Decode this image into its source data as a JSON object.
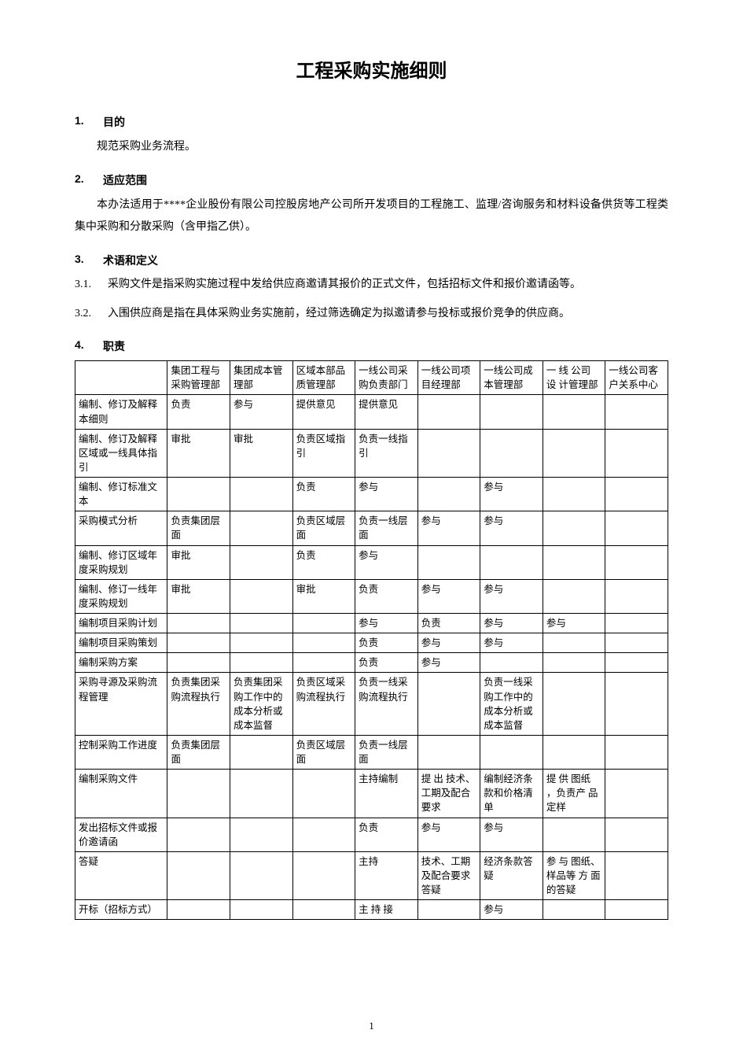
{
  "page": {
    "title": "工程采购实施细则",
    "page_number": "1"
  },
  "sections": {
    "s1": {
      "num": "1.",
      "heading": "目的",
      "body": "规范采购业务流程。"
    },
    "s2": {
      "num": "2.",
      "heading": "适应范围",
      "body": "本办法适用于****企业股份有限公司控股房地产公司所开发项目的工程施工、监理/咨询服务和材料设备供货等工程类集中采购和分散采购（含甲指乙供）。"
    },
    "s3": {
      "num": "3.",
      "heading": "术语和定义",
      "i1": {
        "num": "3.1.",
        "text": "采购文件是指采购实施过程中发给供应商邀请其报价的正式文件，包括招标文件和报价邀请函等。"
      },
      "i2": {
        "num": "3.2.",
        "text": "入围供应商是指在具体采购业务实施前，经过筛选确定为拟邀请参与投标或报价竞争的供应商。"
      }
    },
    "s4": {
      "num": "4.",
      "heading": "职责"
    }
  },
  "table": {
    "headers": {
      "c0": "",
      "c1": "集团工程与采购管理部",
      "c2": "集团成本管理部",
      "c3": "区域本部品质管理部",
      "c4": "一线公司采购负责部门",
      "c5": "一线公司项目经理部",
      "c6": "一线公司成本管理部",
      "c7": "一 线 公司 设 计管理部",
      "c8": "一线公司客户关系中心"
    },
    "rows": [
      {
        "c0": "编制、修订及解释本细则",
        "c1": "负责",
        "c2": "参与",
        "c3": "提供意见",
        "c4": "提供意见",
        "c5": "",
        "c6": "",
        "c7": "",
        "c8": ""
      },
      {
        "c0": "编制、修订及解释区域或一线具体指引",
        "c1": "审批",
        "c2": "审批",
        "c3": "负责区域指引",
        "c4": "负责一线指引",
        "c5": "",
        "c6": "",
        "c7": "",
        "c8": ""
      },
      {
        "c0": "编制、修订标准文本",
        "c1": "",
        "c2": "",
        "c3": "负责",
        "c4": "参与",
        "c5": "",
        "c6": "参与",
        "c7": "",
        "c8": ""
      },
      {
        "c0": "采购模式分析",
        "c1": "负责集团层面",
        "c2": "",
        "c3": "负责区域层面",
        "c4": "负责一线层面",
        "c5": "参与",
        "c6": "参与",
        "c7": "",
        "c8": ""
      },
      {
        "c0": "编制、修订区域年度采购规划",
        "c1": "审批",
        "c2": "",
        "c3": "负责",
        "c4": "参与",
        "c5": "",
        "c6": "",
        "c7": "",
        "c8": ""
      },
      {
        "c0": "编制、修订一线年度采购规划",
        "c1": "审批",
        "c2": "",
        "c3": "审批",
        "c4": "负责",
        "c5": "参与",
        "c6": "参与",
        "c7": "",
        "c8": ""
      },
      {
        "c0": "编制项目采购计划",
        "c1": "",
        "c2": "",
        "c3": "",
        "c4": "参与",
        "c5": "负责",
        "c6": "参与",
        "c7": "参与",
        "c8": ""
      },
      {
        "c0": "编制项目采购策划",
        "c1": "",
        "c2": "",
        "c3": "",
        "c4": "负责",
        "c5": "参与",
        "c6": "参与",
        "c7": "",
        "c8": ""
      },
      {
        "c0": "编制采购方案",
        "c1": "",
        "c2": "",
        "c3": "",
        "c4": "负责",
        "c5": "参与",
        "c6": "",
        "c7": "",
        "c8": ""
      },
      {
        "c0": "采购寻源及采购流程管理",
        "c1": "负责集团采购流程执行",
        "c2": "负责集团采购工作中的成本分析或成本监督",
        "c3": "负责区域采购流程执行",
        "c4": "负责一线采购流程执行",
        "c5": "",
        "c6": "负责一线采购工作中的成本分析或成本监督",
        "c7": "",
        "c8": ""
      },
      {
        "c0": "控制采购工作进度",
        "c1": "负责集团层面",
        "c2": "",
        "c3": "负责区域层面",
        "c4": "负责一线层面",
        "c5": "",
        "c6": "",
        "c7": "",
        "c8": ""
      },
      {
        "c0": "编制采购文件",
        "c1": "",
        "c2": "",
        "c3": "",
        "c4": "主持编制",
        "c5": "提 出 技术、工期及配合要求",
        "c6": "编制经济条款和价格清单",
        "c7": "提 供 图纸 ，负责产 品 定样",
        "c8": ""
      },
      {
        "c0": "发出招标文件或报价邀请函",
        "c1": "",
        "c2": "",
        "c3": "",
        "c4": "负责",
        "c5": "参与",
        "c6": "参与",
        "c7": "",
        "c8": ""
      },
      {
        "c0": "答疑",
        "c1": "",
        "c2": "",
        "c3": "",
        "c4": "主持",
        "c5": "技术、工期及配合要求答疑",
        "c6": "经济条款答疑",
        "c7": "参 与 图纸、样品等 方 面的答疑",
        "c8": ""
      },
      {
        "c0": "开标（招标方式）",
        "c1": "",
        "c2": "",
        "c3": "",
        "c4": "主 持 接",
        "c5": "",
        "c6": "参与",
        "c7": "",
        "c8": ""
      }
    ]
  },
  "style": {
    "background": "#ffffff",
    "text_color": "#000000",
    "border_color": "#000000",
    "title_fontsize": 24,
    "body_fontsize": 14,
    "table_fontsize": 12.5
  }
}
